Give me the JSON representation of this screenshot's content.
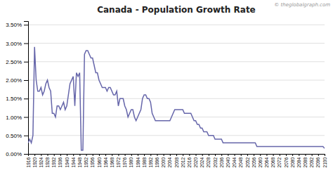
{
  "chart_data": {
    "type": "line",
    "title": "Canada - Population Growth Rate",
    "annotations": [
      "© theglobalgraph.com"
    ],
    "color": "#6666aa",
    "grid": true,
    "xlim": [
      1916,
      2100
    ],
    "xticks": [
      1916,
      1920,
      1924,
      1928,
      1932,
      1936,
      1940,
      1944,
      1948,
      1952,
      1956,
      1960,
      1964,
      1968,
      1972,
      1976,
      1980,
      1984,
      1988,
      1992,
      1996,
      2000,
      2004,
      2008,
      2012,
      2016,
      2020,
      2024,
      2028,
      2032,
      2036,
      2040,
      2044,
      2048,
      2052,
      2056,
      2060,
      2064,
      2068,
      2072,
      2076,
      2080,
      2084,
      2088,
      2092,
      2096,
      2100
    ],
    "ylim": [
      0.0,
      0.036
    ],
    "yticks": [
      {
        "value": 0.0,
        "label": "0.00%"
      },
      {
        "value": 0.005,
        "label": "0.50%"
      },
      {
        "value": 0.01,
        "label": "1.00%"
      },
      {
        "value": 0.015,
        "label": "1.50%"
      },
      {
        "value": 0.02,
        "label": "2.00%"
      },
      {
        "value": 0.025,
        "label": "2.50%"
      },
      {
        "value": 0.03,
        "label": "3.00%"
      },
      {
        "value": 0.035,
        "label": "3.50%"
      }
    ],
    "x": [
      1916,
      1917,
      1918,
      1919,
      1920,
      1921,
      1922,
      1923,
      1924,
      1925,
      1926,
      1927,
      1928,
      1929,
      1930,
      1931,
      1932,
      1933,
      1934,
      1935,
      1936,
      1937,
      1938,
      1939,
      1940,
      1941,
      1942,
      1943,
      1944,
      1945,
      1946,
      1947,
      1948,
      1949,
      1950,
      1951,
      1952,
      1953,
      1954,
      1955,
      1956,
      1957,
      1958,
      1959,
      1960,
      1961,
      1962,
      1963,
      1964,
      1965,
      1966,
      1967,
      1968,
      1969,
      1970,
      1971,
      1972,
      1973,
      1974,
      1975,
      1976,
      1977,
      1978,
      1979,
      1980,
      1981,
      1982,
      1983,
      1984,
      1985,
      1986,
      1987,
      1988,
      1989,
      1990,
      1991,
      1992,
      1993,
      1994,
      1995,
      1996,
      1997,
      1998,
      1999,
      2000,
      2001,
      2002,
      2003,
      2004,
      2005,
      2006,
      2007,
      2008,
      2009,
      2010,
      2011,
      2012,
      2013,
      2014,
      2015,
      2016,
      2017,
      2018,
      2019,
      2020,
      2021,
      2022,
      2023,
      2024,
      2025,
      2026,
      2027,
      2028,
      2029,
      2030,
      2031,
      2032,
      2033,
      2034,
      2035,
      2036,
      2037,
      2038,
      2039,
      2040,
      2041,
      2042,
      2043,
      2044,
      2045,
      2046,
      2047,
      2048,
      2049,
      2050,
      2051,
      2052,
      2053,
      2054,
      2055,
      2056,
      2057,
      2058,
      2059,
      2060,
      2061,
      2062,
      2063,
      2064,
      2065,
      2066,
      2067,
      2068,
      2069,
      2070,
      2071,
      2072,
      2073,
      2074,
      2075,
      2076,
      2077,
      2078,
      2079,
      2080,
      2081,
      2082,
      2083,
      2084,
      2085,
      2086,
      2087,
      2088,
      2089,
      2090,
      2091,
      2092,
      2093,
      2094,
      2095,
      2096,
      2097,
      2098,
      2099,
      2100
    ],
    "values": [
      0.003,
      0.004,
      0.003,
      0.005,
      0.029,
      0.02,
      0.017,
      0.017,
      0.018,
      0.016,
      0.017,
      0.019,
      0.02,
      0.018,
      0.017,
      0.011,
      0.011,
      0.01,
      0.013,
      0.013,
      0.012,
      0.013,
      0.014,
      0.012,
      0.013,
      0.016,
      0.019,
      0.02,
      0.021,
      0.013,
      0.022,
      0.021,
      0.022,
      0.001,
      0.001,
      0.027,
      0.028,
      0.028,
      0.027,
      0.026,
      0.026,
      0.024,
      0.022,
      0.022,
      0.02,
      0.019,
      0.018,
      0.018,
      0.018,
      0.017,
      0.018,
      0.018,
      0.017,
      0.016,
      0.016,
      0.017,
      0.013,
      0.015,
      0.015,
      0.015,
      0.013,
      0.012,
      0.01,
      0.011,
      0.012,
      0.012,
      0.01,
      0.009,
      0.01,
      0.011,
      0.012,
      0.015,
      0.016,
      0.016,
      0.015,
      0.015,
      0.014,
      0.011,
      0.01,
      0.009,
      0.009,
      0.009,
      0.009,
      0.009,
      0.009,
      0.009,
      0.009,
      0.009,
      0.009,
      0.01,
      0.011,
      0.012,
      0.012,
      0.012,
      0.012,
      0.012,
      0.012,
      0.011,
      0.011,
      0.011,
      0.011,
      0.011,
      0.01,
      0.009,
      0.009,
      0.008,
      0.008,
      0.007,
      0.007,
      0.006,
      0.006,
      0.006,
      0.005,
      0.005,
      0.005,
      0.005,
      0.004,
      0.004,
      0.004,
      0.004,
      0.004,
      0.003,
      0.003,
      0.003,
      0.003,
      0.003,
      0.003,
      0.003,
      0.003,
      0.003,
      0.003,
      0.003,
      0.003,
      0.003,
      0.003,
      0.003,
      0.003,
      0.003,
      0.003,
      0.003,
      0.003,
      0.003,
      0.002,
      0.002,
      0.002,
      0.002,
      0.002,
      0.002,
      0.002,
      0.002,
      0.002,
      0.002,
      0.002,
      0.002,
      0.002,
      0.002,
      0.002,
      0.002,
      0.002,
      0.002,
      0.002,
      0.002,
      0.002,
      0.002,
      0.002,
      0.002,
      0.002,
      0.002,
      0.002,
      0.002,
      0.002,
      0.002,
      0.002,
      0.002,
      0.002,
      0.002,
      0.002,
      0.002,
      0.002,
      0.002,
      0.002,
      0.002,
      0.002,
      0.002,
      0.0015
    ]
  }
}
